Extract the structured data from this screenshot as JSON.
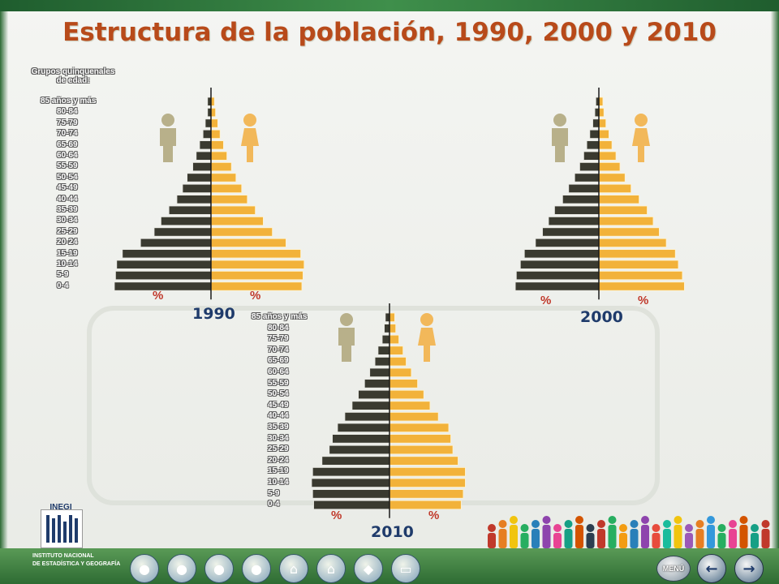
{
  "title": "Estructura de la población, 1990, 2000 y 2010",
  "legend_lines": [
    "Grupos quinquenales",
    "de edad:"
  ],
  "colors": {
    "male_bar": "#3a3a30",
    "female_bar": "#f2b23a",
    "title": "#b84a1a",
    "year": "#1f3b6b",
    "percent": "#c0392b"
  },
  "icons": [
    "male-figure-icon",
    "female-figure-icon"
  ],
  "chart_data": [
    {
      "type": "bar",
      "title": "1990",
      "xlabel_left": "%",
      "xlabel_right": "%",
      "categories": [
        "85 años y más",
        "80-84",
        "75-79",
        "70-74",
        "65-69",
        "60-64",
        "55-59",
        "50-54",
        "45-49",
        "40-44",
        "35-39",
        "30-34",
        "25-29",
        "20-24",
        "15-19",
        "10-14",
        "5-9",
        "0-4"
      ],
      "series": [
        {
          "values": [
            0.3,
            0.3,
            0.5,
            0.7,
            1.0,
            1.3,
            1.6,
            2.1,
            2.5,
            3.0,
            3.7,
            4.4,
            5.0,
            6.2,
            7.8,
            8.3,
            8.4,
            8.5
          ]
        },
        {
          "values": [
            0.3,
            0.4,
            0.6,
            0.8,
            1.1,
            1.4,
            1.8,
            2.2,
            2.7,
            3.2,
            3.9,
            4.6,
            5.4,
            6.6,
            7.9,
            8.2,
            8.1,
            8.0
          ]
        }
      ],
      "xlim": [
        0,
        9
      ]
    },
    {
      "type": "bar",
      "title": "2000",
      "xlabel_left": "%",
      "xlabel_right": "%",
      "categories": [
        "85 años y más",
        "80-84",
        "75-79",
        "70-74",
        "65-69",
        "60-64",
        "55-59",
        "50-54",
        "45-49",
        "40-44",
        "35-39",
        "30-34",
        "25-29",
        "20-24",
        "15-19",
        "10-14",
        "5-9",
        "0-4"
      ],
      "series": [
        {
          "values": [
            0.3,
            0.4,
            0.6,
            0.9,
            1.2,
            1.5,
            1.9,
            2.4,
            3.0,
            3.6,
            4.4,
            5.0,
            5.6,
            6.3,
            7.4,
            7.8,
            8.2,
            8.3
          ]
        },
        {
          "values": [
            0.4,
            0.5,
            0.7,
            1.0,
            1.3,
            1.7,
            2.1,
            2.6,
            3.2,
            4.0,
            4.8,
            5.4,
            6.0,
            6.7,
            7.6,
            7.9,
            8.3,
            8.5
          ]
        }
      ],
      "xlim": [
        0,
        9
      ]
    },
    {
      "type": "bar",
      "title": "2010",
      "xlabel_left": "%",
      "xlabel_right": "%",
      "categories": [
        "85 años y más",
        "80-84",
        "75-79",
        "70-74",
        "65-69",
        "60-64",
        "55-59",
        "50-54",
        "45-49",
        "40-44",
        "35-39",
        "30-34",
        "25-29",
        "20-24",
        "15-19",
        "10-14",
        "5-9",
        "0-4"
      ],
      "series": [
        {
          "values": [
            0.4,
            0.5,
            0.7,
            1.1,
            1.4,
            1.9,
            2.4,
            3.0,
            3.6,
            4.3,
            5.0,
            5.5,
            5.8,
            6.5,
            7.4,
            7.5,
            7.4,
            7.3
          ]
        },
        {
          "values": [
            0.5,
            0.6,
            0.9,
            1.3,
            1.6,
            2.1,
            2.7,
            3.3,
            3.9,
            4.7,
            5.7,
            5.9,
            6.1,
            6.6,
            7.3,
            7.3,
            7.1,
            6.9
          ]
        }
      ],
      "xlim": [
        0,
        9
      ]
    }
  ],
  "footer": {
    "logo_text": "INEGI",
    "institute_line1": "INSTITUTO NACIONAL",
    "institute_line2": "DE ESTADÍSTICA Y GEOGRAFÍA",
    "menu_label": "MENÚ",
    "back_arrow": "←",
    "forward_arrow": "→"
  }
}
